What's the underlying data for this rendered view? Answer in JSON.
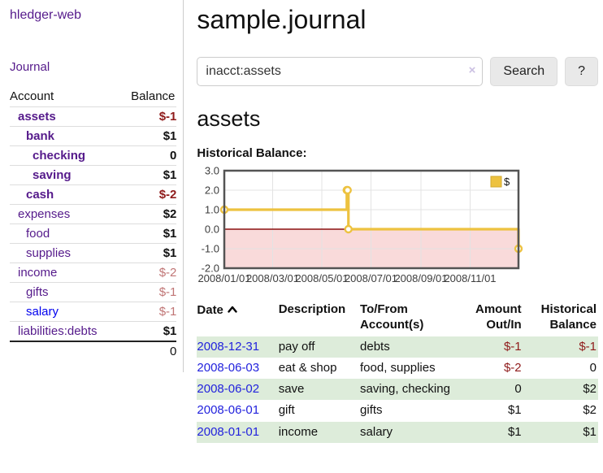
{
  "app": {
    "brand": "hledger-web"
  },
  "sidebar": {
    "journal_link": "Journal",
    "table": {
      "headers": {
        "account": "Account",
        "balance": "Balance"
      },
      "rows": [
        {
          "account": "assets",
          "balance": "$-1"
        },
        {
          "account": "bank",
          "balance": "$1"
        },
        {
          "account": "checking",
          "balance": "0"
        },
        {
          "account": "saving",
          "balance": "$1"
        },
        {
          "account": "cash",
          "balance": "$-2"
        },
        {
          "account": "expenses",
          "balance": "$2"
        },
        {
          "account": "food",
          "balance": "$1"
        },
        {
          "account": "supplies",
          "balance": "$1"
        },
        {
          "account": "income",
          "balance": "$-2"
        },
        {
          "account": "gifts",
          "balance": "$-1"
        },
        {
          "account": "salary",
          "balance": "$-1"
        },
        {
          "account": "liabilities:debts",
          "balance": "$1"
        }
      ],
      "total": "0"
    }
  },
  "main": {
    "title": "sample.journal",
    "search": {
      "value": "inacct:assets",
      "clear": "×",
      "button": "Search",
      "help": "?"
    },
    "heading": "assets",
    "chart_label": "Historical Balance:",
    "register": {
      "headers": {
        "date": "Date",
        "description": "Description",
        "accounts_l1": "To/From",
        "accounts_l2": "Account(s)",
        "amount_l1": "Amount",
        "amount_l2": "Out/In",
        "balance_l1": "Historical",
        "balance_l2": "Balance"
      },
      "rows": [
        {
          "date": "2008-12-31",
          "description": "pay off",
          "accounts": "debts",
          "amount": "$-1",
          "balance": "$-1"
        },
        {
          "date": "2008-06-03",
          "description": "eat & shop",
          "accounts": "food, supplies",
          "amount": "$-2",
          "balance": "0"
        },
        {
          "date": "2008-06-02",
          "description": "save",
          "accounts": "saving, checking",
          "amount": "0",
          "balance": "$2"
        },
        {
          "date": "2008-06-01",
          "description": "gift",
          "accounts": "gifts",
          "amount": "$1",
          "balance": "$2"
        },
        {
          "date": "2008-01-01",
          "description": "income",
          "accounts": "salary",
          "amount": "$1",
          "balance": "$1"
        }
      ]
    }
  },
  "chart_data": {
    "type": "line",
    "title": "Historical Balance:",
    "step": true,
    "x_range": [
      "2008-01-01",
      "2008-12-31"
    ],
    "ylim": [
      -2,
      3
    ],
    "yticks": [
      {
        "v": 3,
        "label": "3.0"
      },
      {
        "v": 2,
        "label": "2.0"
      },
      {
        "v": 1,
        "label": "1.0"
      },
      {
        "v": 0,
        "label": "0.0"
      },
      {
        "v": -1,
        "label": "-1.0"
      },
      {
        "v": -2,
        "label": "-2.0"
      }
    ],
    "xticks": [
      {
        "date": "2008-01-01",
        "label": "2008/01/01"
      },
      {
        "date": "2008-03-01",
        "label": "2008/03/01"
      },
      {
        "date": "2008-05-01",
        "label": "2008/05/01"
      },
      {
        "date": "2008-07-01",
        "label": "2008/07/01"
      },
      {
        "date": "2008-09-01",
        "label": "2008/09/01"
      },
      {
        "date": "2008-11-01",
        "label": "2008/11/01"
      }
    ],
    "series": [
      {
        "name": "$",
        "color": "#edc240",
        "points": [
          [
            "2008-01-01",
            1
          ],
          [
            "2008-06-01",
            2
          ],
          [
            "2008-06-02",
            2
          ],
          [
            "2008-06-03",
            0
          ],
          [
            "2008-12-31",
            -1
          ]
        ]
      }
    ],
    "legend": [
      {
        "label": "$",
        "color": "#edc240"
      }
    ],
    "legend_position": "top-right",
    "grid": true,
    "negative_region_fill": "#f9dada",
    "zero_line_color": "#8b1010",
    "border_color": "#545454",
    "grid_color": "#e3e3e3"
  },
  "theme": {
    "link_purple": "#551a8b",
    "link_blue": "#2222dd",
    "negative_red": "#8f1b1b",
    "negative_soft": "#c07575",
    "stripe_green": "#ddecda",
    "series_yellow": "#edc240"
  }
}
